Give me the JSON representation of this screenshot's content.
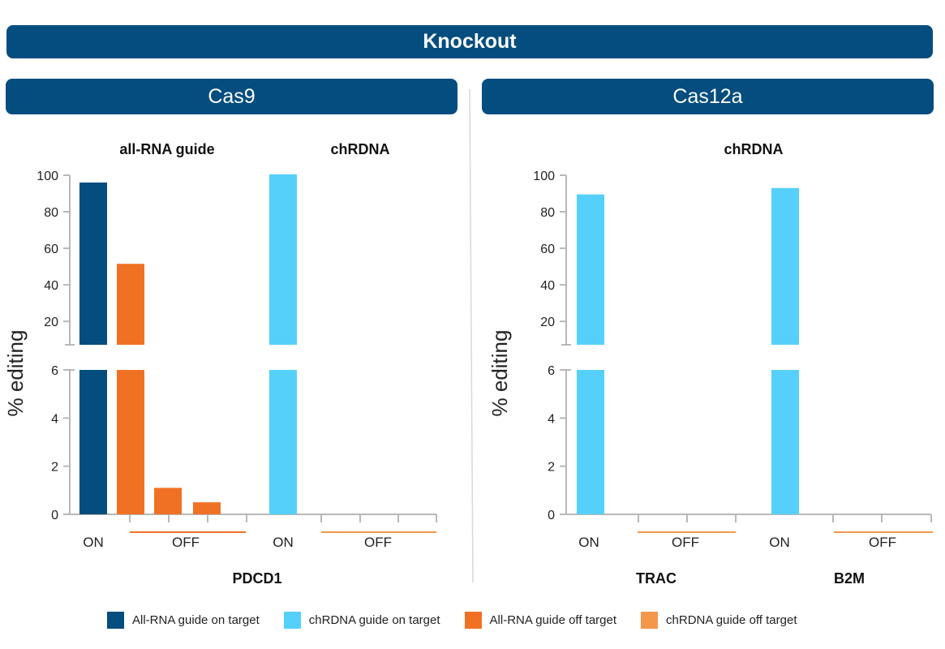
{
  "header": {
    "title": "Knockout"
  },
  "panels": [
    {
      "title": "Cas9"
    },
    {
      "title": "Cas12a"
    }
  ],
  "colors": {
    "allrna_on": "#044d7f",
    "chrdna_on": "#55d0fb",
    "allrna_off": "#f07124",
    "chrdna_off": "#f5974a",
    "axis": "#b8b8b8"
  },
  "legend": [
    {
      "label": "All-RNA guide on target",
      "color": "#044d7f"
    },
    {
      "label": "chRDNA guide on target",
      "color": "#55d0fb"
    },
    {
      "label": "All-RNA guide off target",
      "color": "#f07124"
    },
    {
      "label": "chRDNA guide off target",
      "color": "#f5974a"
    }
  ],
  "chart_data": [
    {
      "type": "bar",
      "panel": "Cas9",
      "ylabel": "% editing",
      "y_axis_break": true,
      "ylim_upper": [
        0,
        100
      ],
      "yticks_upper": [
        "20",
        "40",
        "60",
        "80",
        "100"
      ],
      "ylim_lower": [
        0,
        6
      ],
      "yticks_lower": [
        "0",
        "2",
        "4",
        "6"
      ],
      "gene": "PDCD1",
      "subtitles": [
        "all-RNA guide",
        "chRDNA"
      ],
      "groups": [
        {
          "subtitle": "all-RNA guide",
          "on_label": "ON",
          "off_label": "OFF",
          "on": [
            {
              "series": "All-RNA guide on target",
              "value": 96
            }
          ],
          "off": [
            {
              "series": "All-RNA guide off target",
              "value": 51.5
            },
            {
              "series": "All-RNA guide off target",
              "value": 1.1
            },
            {
              "series": "All-RNA guide off target",
              "value": 0.5
            }
          ]
        },
        {
          "subtitle": "chRDNA",
          "on_label": "ON",
          "off_label": "OFF",
          "on": [
            {
              "series": "chRDNA guide on target",
              "value": 100.5
            }
          ],
          "off": [
            {
              "series": "chRDNA guide off target",
              "value": 0
            },
            {
              "series": "chRDNA guide off target",
              "value": 0
            },
            {
              "series": "chRDNA guide off target",
              "value": 0
            }
          ]
        }
      ]
    },
    {
      "type": "bar",
      "panel": "Cas12a",
      "ylabel": "% editing",
      "y_axis_break": true,
      "ylim_upper": [
        0,
        100
      ],
      "yticks_upper": [
        "20",
        "40",
        "60",
        "80",
        "100"
      ],
      "ylim_lower": [
        0,
        6
      ],
      "yticks_lower": [
        "0",
        "2",
        "4",
        "6"
      ],
      "subtitle": "chRDNA",
      "groups": [
        {
          "gene": "TRAC",
          "on_label": "ON",
          "off_label": "OFF",
          "on": [
            {
              "series": "chRDNA guide on target",
              "value": 89.5
            }
          ],
          "off": [
            {
              "series": "chRDNA guide off target",
              "value": 0
            },
            {
              "series": "chRDNA guide off target",
              "value": 0
            }
          ]
        },
        {
          "gene": "B2M",
          "on_label": "ON",
          "off_label": "OFF",
          "on": [
            {
              "series": "chRDNA guide on target",
              "value": 93
            }
          ],
          "off": [
            {
              "series": "chRDNA guide off target",
              "value": 0
            },
            {
              "series": "chRDNA guide off target",
              "value": 0
            }
          ]
        }
      ]
    }
  ]
}
